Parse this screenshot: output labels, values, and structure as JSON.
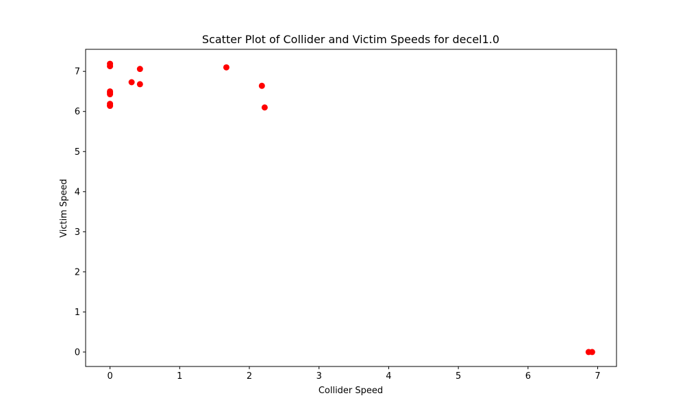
{
  "chart_data": {
    "type": "scatter",
    "title": "Scatter Plot of Collider and Victim Speeds for decel1.0",
    "xlabel": "Collider Speed",
    "ylabel": "Victim Speed",
    "xlim": [
      -0.35,
      7.27
    ],
    "ylim": [
      -0.36,
      7.55
    ],
    "xticks": [
      0,
      1,
      2,
      3,
      4,
      5,
      6,
      7
    ],
    "yticks": [
      0,
      1,
      2,
      3,
      4,
      5,
      6,
      7
    ],
    "grid": false,
    "marker_color": "#ff0000",
    "series": [
      {
        "x": [
          0.0,
          0.0,
          0.0,
          0.0,
          0.0,
          0.0,
          0.0,
          0.0,
          0.31,
          0.43,
          0.43,
          1.67,
          2.18,
          2.22,
          6.87,
          6.92
        ],
        "y": [
          7.19,
          7.13,
          6.5,
          6.47,
          6.43,
          6.19,
          6.15,
          6.14,
          6.73,
          7.06,
          6.68,
          7.1,
          6.64,
          6.1,
          0.0,
          0.0
        ]
      }
    ]
  }
}
